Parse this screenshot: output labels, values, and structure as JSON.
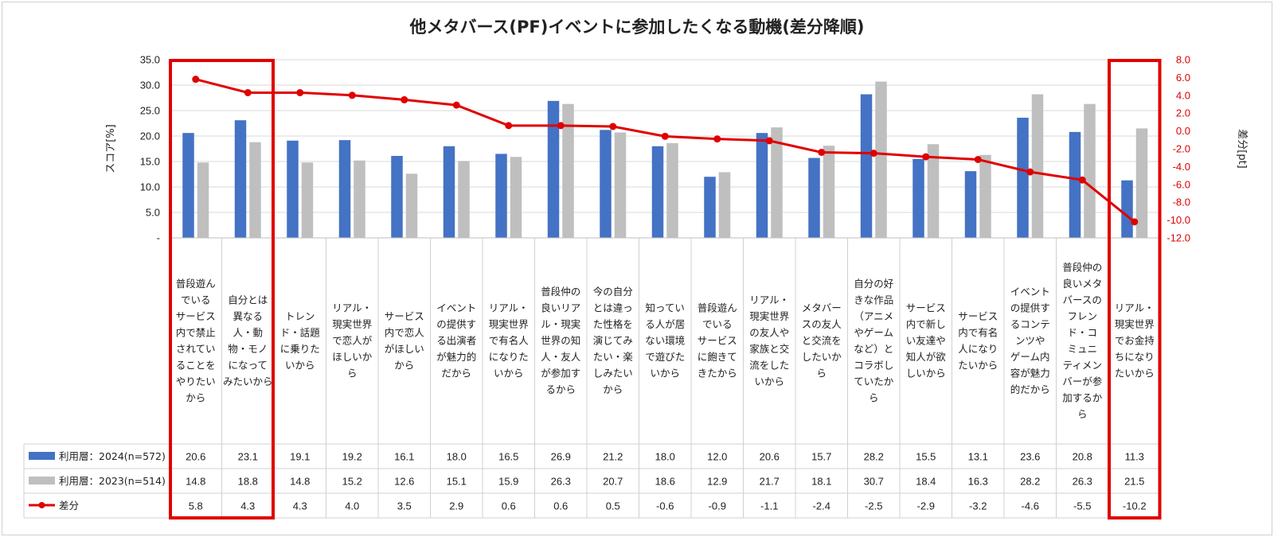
{
  "chart_data": {
    "type": "bar",
    "title": "他メタバース(PF)イベントに参加したくなる動機(差分降順)",
    "ylabel": "スコア[%]",
    "y2label": "差分[pt]",
    "ylim": [
      0,
      35
    ],
    "y2lim": [
      -12,
      8
    ],
    "yticks": [
      "35.0",
      "30.0",
      "25.0",
      "20.0",
      "15.0",
      "10.0",
      "5.0",
      "-"
    ],
    "y2ticks": [
      "8.0",
      "6.0",
      "4.0",
      "2.0",
      "0.0",
      "-2.0",
      "-4.0",
      "-6.0",
      "-8.0",
      "-10.0",
      "-12.0"
    ],
    "grid": true,
    "categories": [
      "普段遊んでいるサービス内で禁止されていることをやりたいから",
      "自分とは異なる人・動物・モノになってみたいから",
      "トレンド・話題に乗りたいから",
      "リアル・現実世界で恋人がほしいから",
      "サービス内で恋人がほしいから",
      "イベントの提供する出演者が魅力的だから",
      "リアル・現実世界で有名人になりたいから",
      "普段仲の良いリアル・現実世界の知人・友人が参加するから",
      "今の自分とは違った性格を演じてみたい・楽しみたいから",
      "知っている人が居ない環境で遊びたいから",
      "普段遊んでいるサービスに飽きてきたから",
      "リアル・現実世界の友人や家族と交流をしたいから",
      "メタバースの友人と交流をしたいから",
      "自分の好きな作品(アニメやゲームなど)とコラボしていたから",
      "サービス内で新しい友達や知人が欲しいから",
      "サービス内で有名人になりたいから",
      "イベントの提供するコンテンツやゲーム内容が魅力的だから",
      "普段仲の良いメタバースのフレンド・コミュニティメンバーが参加するから",
      "リアル・現実世界でお金持ちになりたいから"
    ],
    "category_lines": [
      [
        "普段遊ん",
        "でいる",
        "サービス",
        "内で禁止",
        "されてい",
        "ることを",
        "やりたい",
        "から"
      ],
      [
        "自分とは",
        "異なる",
        "人・動",
        "物・モノ",
        "になって",
        "みたいから"
      ],
      [
        "トレン",
        "ド・話題",
        "に乗りた",
        "いから"
      ],
      [
        "リアル・",
        "現実世界",
        "で恋人が",
        "ほしいか",
        "ら"
      ],
      [
        "サービス",
        "内で恋人",
        "がほしい",
        "から"
      ],
      [
        "イベント",
        "の提供す",
        "る出演者",
        "が魅力的",
        "だから"
      ],
      [
        "リアル・",
        "現実世界",
        "で有名人",
        "になりた",
        "いから"
      ],
      [
        "普段仲の",
        "良いリア",
        "ル・現実",
        "世界の知",
        "人・友人",
        "が参加す",
        "るから"
      ],
      [
        "今の自分",
        "とは違っ",
        "た性格を",
        "演じてみ",
        "たい・楽",
        "しみたい",
        "から"
      ],
      [
        "知ってい",
        "る人が居",
        "ない環境",
        "で遊びた",
        "いから"
      ],
      [
        "普段遊ん",
        "でいる",
        "サービス",
        "に飽きて",
        "きたから"
      ],
      [
        "リアル・",
        "現実世界",
        "の友人や",
        "家族と交",
        "流をした",
        "いから"
      ],
      [
        "メタバー",
        "スの友人",
        "と交流を",
        "したいか",
        "ら"
      ],
      [
        "自分の好",
        "きな作品",
        "（アニメ",
        "やゲーム",
        "など）と",
        "コラボし",
        "ていたか",
        "ら"
      ],
      [
        "サービス",
        "内で新し",
        "い友達や",
        "知人が欲",
        "しいから"
      ],
      [
        "サービス",
        "内で有名",
        "人になり",
        "たいから"
      ],
      [
        "イベント",
        "の提供す",
        "るコンテ",
        "ンツや",
        "ゲーム内",
        "容が魅力",
        "的だから"
      ],
      [
        "普段仲の",
        "良いメタ",
        "バースの",
        "フレン",
        "ド・コ",
        "ミュニ",
        "ティメン",
        "バーが参",
        "加するか",
        "ら"
      ],
      [
        "リアル・",
        "現実世界",
        "でお金持",
        "ちになり",
        "たいから"
      ]
    ],
    "series": [
      {
        "name": "利用層：2024(n=572)",
        "type": "bar",
        "axis": "left",
        "color": "#4472c4",
        "values": [
          20.6,
          23.1,
          19.1,
          19.2,
          16.1,
          18.0,
          16.5,
          26.9,
          21.2,
          18.0,
          12.0,
          20.6,
          15.7,
          28.2,
          15.5,
          13.1,
          23.6,
          20.8,
          11.3
        ],
        "labels": [
          "20.6",
          "23.1",
          "19.1",
          "19.2",
          "16.1",
          "18.0",
          "16.5",
          "26.9",
          "21.2",
          "18.0",
          "12.0",
          "20.6",
          "15.7",
          "28.2",
          "15.5",
          "13.1",
          "23.6",
          "20.8",
          "11.3"
        ]
      },
      {
        "name": "利用層：2023(n=514)",
        "type": "bar",
        "axis": "left",
        "color": "#bfbfbf",
        "values": [
          14.8,
          18.8,
          14.8,
          15.2,
          12.6,
          15.1,
          15.9,
          26.3,
          20.7,
          18.6,
          12.9,
          21.7,
          18.1,
          30.7,
          18.4,
          16.3,
          28.2,
          26.3,
          21.5
        ],
        "labels": [
          "14.8",
          "18.8",
          "14.8",
          "15.2",
          "12.6",
          "15.1",
          "15.9",
          "26.3",
          "20.7",
          "18.6",
          "12.9",
          "21.7",
          "18.1",
          "30.7",
          "18.4",
          "16.3",
          "28.2",
          "26.3",
          "21.5"
        ]
      },
      {
        "name": "差分",
        "type": "line",
        "axis": "right",
        "color": "#e00000",
        "values": [
          5.8,
          4.3,
          4.3,
          4.0,
          3.5,
          2.9,
          0.6,
          0.6,
          0.5,
          -0.6,
          -0.9,
          -1.1,
          -2.4,
          -2.5,
          -2.9,
          -3.2,
          -4.6,
          -5.5,
          -10.2
        ],
        "labels": [
          "5.8",
          "4.3",
          "4.3",
          "4.0",
          "3.5",
          "2.9",
          "0.6",
          "0.6",
          "0.5",
          "-0.6",
          "-0.9",
          "-1.1",
          "-2.4",
          "-2.5",
          "-2.9",
          "-3.2",
          "-4.6",
          "-5.5",
          "-10.2"
        ]
      }
    ],
    "highlighted_categories": [
      0,
      1,
      18
    ],
    "highlight_color": "#e00000"
  }
}
